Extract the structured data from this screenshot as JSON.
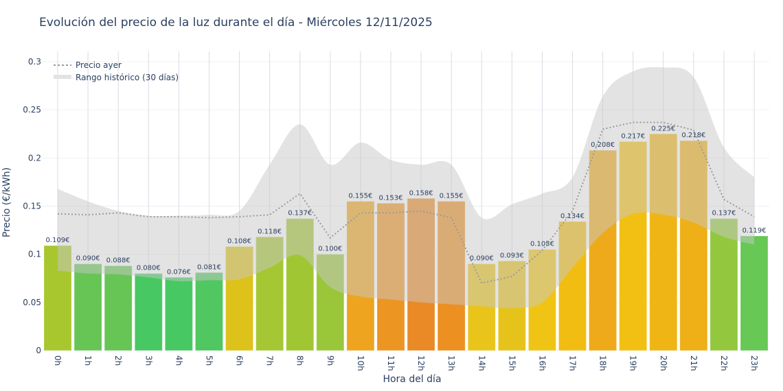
{
  "chart_data": {
    "type": "bar",
    "title": "Evolución del precio de la luz durante el día - Miércoles 12/11/2025",
    "xlabel": "Hora del día",
    "ylabel": "Precio (€/kWh)",
    "ylim": [
      0,
      0.31
    ],
    "yticks": [
      0,
      0.05,
      0.1,
      0.15,
      0.2,
      0.25,
      0.3
    ],
    "ytick_labels": [
      "0",
      "0.05",
      "0.1",
      "0.15",
      "0.2",
      "0.25",
      "0.3"
    ],
    "grid": true,
    "legend_position": "top-left",
    "categories": [
      "0h",
      "1h",
      "2h",
      "3h",
      "4h",
      "5h",
      "6h",
      "7h",
      "8h",
      "9h",
      "10h",
      "11h",
      "12h",
      "13h",
      "14h",
      "15h",
      "16h",
      "17h",
      "18h",
      "19h",
      "20h",
      "21h",
      "22h",
      "23h"
    ],
    "values": [
      0.109,
      0.09,
      0.088,
      0.08,
      0.076,
      0.081,
      0.108,
      0.118,
      0.137,
      0.1,
      0.155,
      0.153,
      0.158,
      0.155,
      0.09,
      0.093,
      0.105,
      0.134,
      0.208,
      0.217,
      0.225,
      0.218,
      0.137,
      0.119
    ],
    "data_labels": [
      "0.109€",
      "0.090€",
      "0.088€",
      "0.080€",
      "0.076€",
      "0.081€",
      "0.108€",
      "0.118€",
      "0.137€",
      "0.100€",
      "0.155€",
      "0.153€",
      "0.158€",
      "0.155€",
      "0.090€",
      "0.093€",
      "0.105€",
      "0.134€",
      "0.208€",
      "0.217€",
      "0.225€",
      "0.218€",
      "0.137€",
      "0.119€"
    ],
    "bar_colors": [
      "#a8c72e",
      "#66c555",
      "#66c555",
      "#48c862",
      "#48c862",
      "#50c760",
      "#dcc21a",
      "#a5c733",
      "#a0c733",
      "#9ac73a",
      "#eea41e",
      "#ec9522",
      "#ea8a26",
      "#ec9022",
      "#e9c41b",
      "#e6c31b",
      "#f0c414",
      "#f2bd12",
      "#eeaa1a",
      "#f2c012",
      "#efb515",
      "#eeb016",
      "#93c83e",
      "#67c855"
    ],
    "series": [
      {
        "name": "Precio ayer",
        "type": "line",
        "style": "dotted",
        "color": "#9a9a9a",
        "values": [
          0.142,
          0.141,
          0.143,
          0.139,
          0.139,
          0.138,
          0.139,
          0.141,
          0.163,
          0.117,
          0.143,
          0.143,
          0.145,
          0.138,
          0.07,
          0.077,
          0.104,
          0.145,
          0.23,
          0.237,
          0.237,
          0.229,
          0.157,
          0.139
        ]
      },
      {
        "name": "Rango histórico (30 días)",
        "type": "area-band",
        "color": "#d3d3d3",
        "upper": [
          0.168,
          0.155,
          0.145,
          0.14,
          0.14,
          0.141,
          0.145,
          0.193,
          0.235,
          0.193,
          0.216,
          0.198,
          0.193,
          0.193,
          0.138,
          0.152,
          0.163,
          0.18,
          0.264,
          0.29,
          0.294,
          0.284,
          0.211,
          0.18
        ],
        "lower": [
          0.083,
          0.08,
          0.079,
          0.076,
          0.072,
          0.073,
          0.074,
          0.086,
          0.099,
          0.066,
          0.056,
          0.053,
          0.05,
          0.048,
          0.046,
          0.044,
          0.05,
          0.086,
          0.122,
          0.142,
          0.141,
          0.133,
          0.118,
          0.11
        ]
      }
    ]
  }
}
